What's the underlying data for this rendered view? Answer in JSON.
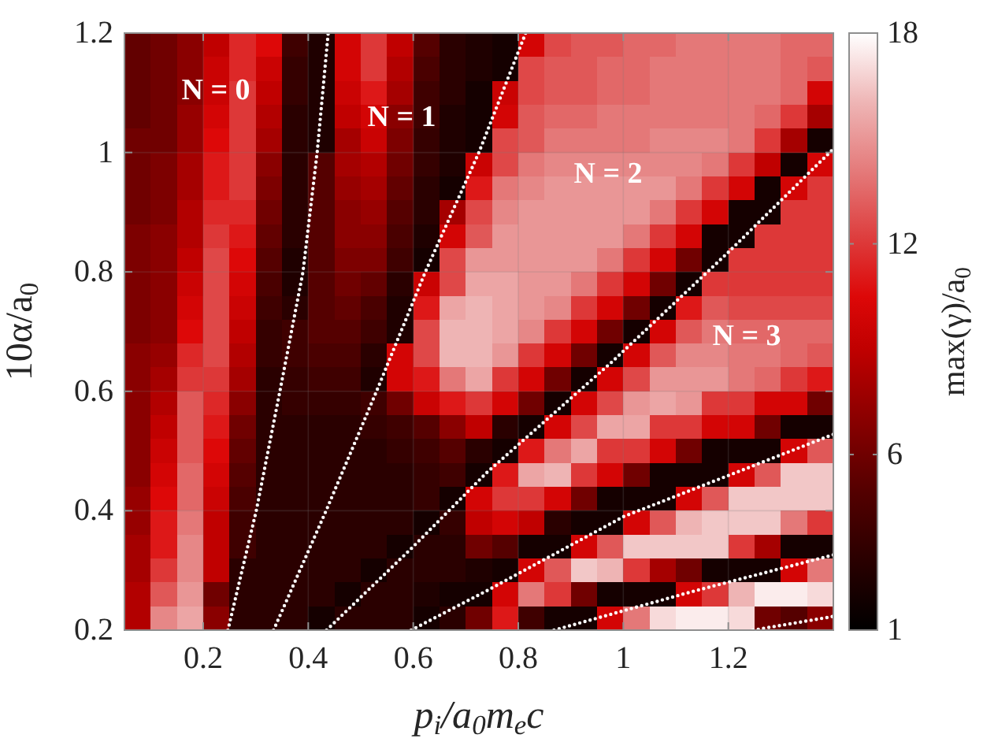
{
  "chart_data": {
    "type": "heatmap",
    "xlabel": "p$_{i}$/a$_{0}$m$_{e}$c",
    "ylabel": "10α/a$_{0}$",
    "clabel": "max(γ)/a$_{0}$",
    "xlim": [
      0.05,
      1.4
    ],
    "ylim": [
      0.2,
      1.2
    ],
    "xticks": [
      0.2,
      0.4,
      0.6,
      0.8,
      1,
      1.2
    ],
    "yticks": [
      0.2,
      0.4,
      0.6,
      0.8,
      1,
      1.2
    ],
    "clim": [
      1,
      18
    ],
    "cticks": [
      1,
      6,
      12,
      18
    ],
    "grid": true,
    "cells": [
      [
        5.5,
        6,
        7,
        9,
        11.5,
        10.5,
        4,
        2.5,
        10,
        12,
        9,
        5,
        3,
        2.5,
        2,
        10,
        12.5,
        13,
        13,
        13.5,
        13.5,
        14,
        14,
        14,
        14,
        13.5,
        13.5
      ],
      [
        5.5,
        6,
        7,
        9.5,
        11.5,
        9.5,
        3.5,
        2.5,
        10,
        12,
        8.5,
        4.5,
        3,
        2.5,
        2,
        12.5,
        13,
        13,
        13.5,
        13.5,
        14,
        14,
        14,
        14,
        14,
        13.5,
        13
      ],
      [
        5.5,
        6,
        7,
        9.5,
        12,
        9,
        3.5,
        2.5,
        9.5,
        11,
        8,
        4,
        3,
        2,
        9.5,
        12.5,
        13,
        13,
        13.5,
        13.5,
        14,
        14,
        14,
        14,
        14,
        13.5,
        10
      ],
      [
        5.5,
        6,
        7.5,
        10,
        12,
        8.5,
        3,
        2.5,
        9,
        10,
        7,
        4,
        2.5,
        2,
        10,
        13,
        13.5,
        13.5,
        14,
        14,
        14,
        14,
        14,
        14,
        13.5,
        12,
        8
      ],
      [
        6,
        6,
        7.5,
        10.5,
        12,
        8,
        3,
        2.5,
        8,
        9.5,
        6.5,
        3.5,
        2.5,
        2,
        12.5,
        13,
        14,
        14,
        14,
        14,
        14.5,
        14.5,
        14.5,
        14,
        12,
        8,
        2
      ],
      [
        6,
        6.5,
        8,
        11,
        12,
        7,
        3,
        5,
        8,
        8.5,
        6,
        3.5,
        2.5,
        9.5,
        12.5,
        14,
        14.5,
        14.5,
        14.5,
        14.5,
        14.5,
        14.5,
        14,
        12,
        9,
        2,
        10
      ],
      [
        6,
        6.5,
        8,
        11,
        12,
        6.5,
        3,
        5,
        7.5,
        8,
        5.5,
        3,
        2,
        11,
        14,
        14.5,
        15,
        15,
        15,
        15,
        15,
        14,
        12,
        10,
        2,
        10,
        12
      ],
      [
        6,
        6.5,
        8.5,
        11.5,
        11.5,
        6,
        3,
        5,
        7,
        7.5,
        5,
        3,
        8,
        12.5,
        14.5,
        15,
        15,
        15,
        15,
        15,
        14,
        12,
        10,
        2,
        2,
        12,
        12
      ],
      [
        6.5,
        7,
        8.5,
        12,
        11,
        5.5,
        3,
        5,
        7,
        7,
        4.5,
        2.5,
        10,
        13,
        15,
        15,
        15,
        15,
        15,
        14,
        12,
        10,
        2,
        2,
        12,
        12,
        12
      ],
      [
        6.5,
        7,
        9,
        12.5,
        10.5,
        5,
        2.5,
        5,
        6.5,
        6.5,
        4,
        2,
        12.5,
        15,
        15,
        15,
        15,
        15,
        14,
        12,
        10,
        6,
        2,
        12,
        12,
        12,
        12
      ],
      [
        6.5,
        7,
        9.5,
        12.5,
        10,
        4.5,
        2.5,
        5,
        6,
        5.5,
        3,
        9.5,
        12.5,
        15.5,
        15.5,
        15,
        15,
        14,
        12,
        10,
        6,
        2,
        12,
        12,
        12,
        12,
        12
      ],
      [
        6.5,
        7,
        10,
        12.5,
        9.5,
        4,
        3,
        5,
        5.5,
        4.5,
        2.5,
        11,
        15.5,
        16,
        15.5,
        15,
        14.5,
        12,
        10,
        6,
        2,
        11,
        13,
        12.5,
        12.5,
        12.5,
        12.5
      ],
      [
        6.5,
        7,
        10.5,
        12.5,
        9,
        3.5,
        4,
        5,
        5,
        4,
        2.5,
        12.5,
        16,
        16,
        15.5,
        14.5,
        12,
        10,
        6,
        2,
        10,
        13,
        14,
        13.5,
        13.5,
        13.5,
        13.5
      ],
      [
        7,
        7.5,
        11.5,
        12.5,
        8.5,
        3.5,
        4,
        4.5,
        4.5,
        3,
        10,
        12.5,
        16,
        16,
        15,
        12,
        10,
        6,
        2,
        10,
        13,
        14.5,
        14.5,
        14,
        14,
        13.5,
        13
      ],
      [
        7,
        8,
        12,
        12,
        8,
        3,
        3.5,
        4,
        4,
        2.5,
        10,
        11,
        14,
        15.5,
        12,
        10,
        6,
        2,
        10,
        12.5,
        15,
        15,
        15,
        14,
        13.5,
        12,
        11
      ],
      [
        7,
        8.5,
        13,
        11.5,
        7,
        3,
        3.5,
        3.5,
        3.5,
        4,
        6,
        9.5,
        11,
        12,
        10,
        6,
        2,
        10,
        12.5,
        15,
        15.5,
        15,
        12,
        12,
        10,
        10,
        6
      ],
      [
        7,
        9,
        13,
        11,
        6,
        3,
        3,
        3,
        3,
        3.5,
        4,
        5,
        7,
        9,
        3,
        2,
        10,
        12.5,
        15.5,
        15.5,
        12,
        12,
        10,
        10,
        6,
        2,
        2
      ],
      [
        7,
        9.5,
        13,
        10.5,
        5.5,
        3,
        3,
        3,
        3,
        3,
        3.5,
        4,
        5,
        3,
        2,
        11,
        14,
        15.5,
        12,
        12,
        10,
        6,
        2,
        2,
        2,
        10,
        13
      ],
      [
        7,
        10,
        13.5,
        10,
        5,
        3,
        3,
        3,
        3,
        3,
        3,
        3.5,
        4,
        2,
        11,
        15.5,
        16,
        12,
        10,
        6,
        2,
        2,
        2,
        10,
        13,
        16.5,
        16.5
      ],
      [
        7.5,
        10.5,
        13.5,
        9.5,
        4.5,
        3,
        3,
        3,
        3,
        3,
        3,
        3.5,
        2,
        10,
        12,
        12,
        10,
        6,
        2,
        2,
        2,
        10,
        13,
        16.5,
        16.5,
        16.5,
        16.5
      ],
      [
        7.5,
        11,
        14,
        9,
        4,
        3,
        3,
        3,
        3,
        3,
        3,
        2,
        3.5,
        9,
        10,
        9,
        3,
        2,
        2,
        10,
        13,
        16,
        16.5,
        16.5,
        16.5,
        14,
        12
      ],
      [
        8,
        11,
        14.5,
        9,
        4,
        3,
        3,
        3,
        3,
        3,
        2,
        3,
        3,
        6,
        5,
        2,
        2,
        10,
        13,
        16.5,
        16.5,
        16.5,
        16.5,
        12,
        8,
        2,
        2
      ],
      [
        8,
        12,
        14.5,
        9,
        3,
        3,
        3,
        3,
        3,
        2,
        3,
        3,
        3,
        2.5,
        2,
        10,
        13,
        16.5,
        16,
        12,
        8,
        6,
        2,
        2,
        2,
        10,
        14
      ],
      [
        8.5,
        13,
        15,
        6,
        3,
        3,
        3,
        3,
        2,
        3,
        3,
        2.5,
        2,
        2,
        10,
        14,
        12,
        6,
        2,
        2,
        2,
        10,
        12,
        16,
        17.5,
        17.5,
        17
      ],
      [
        8.5,
        14.5,
        15.5,
        7,
        3,
        3,
        3,
        2,
        3,
        3,
        3,
        2,
        3,
        6,
        11,
        4,
        2,
        2,
        10,
        14,
        17,
        17.5,
        17.5,
        17,
        6,
        5,
        7
      ]
    ],
    "series": [
      {
        "type": "line",
        "x": [
          0.247,
          0.301,
          0.346,
          0.39,
          0.417,
          0.438
        ],
        "values": [
          0.2,
          0.4,
          0.6,
          0.8,
          1.0,
          1.2
        ],
        "color": "#ffffff",
        "line_style": "dotted"
      },
      {
        "type": "line",
        "x": [
          0.334,
          0.434,
          0.53,
          0.623,
          0.725,
          0.814
        ],
        "values": [
          0.2,
          0.4,
          0.6,
          0.8,
          1.0,
          1.2
        ],
        "color": "#ffffff",
        "line_style": "dotted"
      },
      {
        "type": "line",
        "x": [
          0.435,
          0.6,
          0.74,
          0.978,
          1.2,
          1.4
        ],
        "values": [
          0.2,
          0.34,
          0.464,
          0.649,
          0.833,
          1.006
        ],
        "color": "#ffffff",
        "line_style": "dotted"
      },
      {
        "type": "line",
        "x": [
          0.596,
          0.74,
          1.0,
          1.4
        ],
        "values": [
          0.2,
          0.266,
          0.39,
          0.528
        ],
        "color": "#ffffff",
        "line_style": "dotted"
      },
      {
        "type": "line",
        "x": [
          0.868,
          1.137,
          1.4
        ],
        "values": [
          0.2,
          0.266,
          0.326
        ],
        "color": "#ffffff",
        "line_style": "dotted"
      },
      {
        "type": "line",
        "x": [
          1.247,
          1.4
        ],
        "values": [
          0.2,
          0.223
        ],
        "color": "#ffffff",
        "line_style": "dotted"
      }
    ],
    "annotations": [
      "N = 0",
      "N = 1",
      "N = 2",
      "N = 3"
    ]
  }
}
